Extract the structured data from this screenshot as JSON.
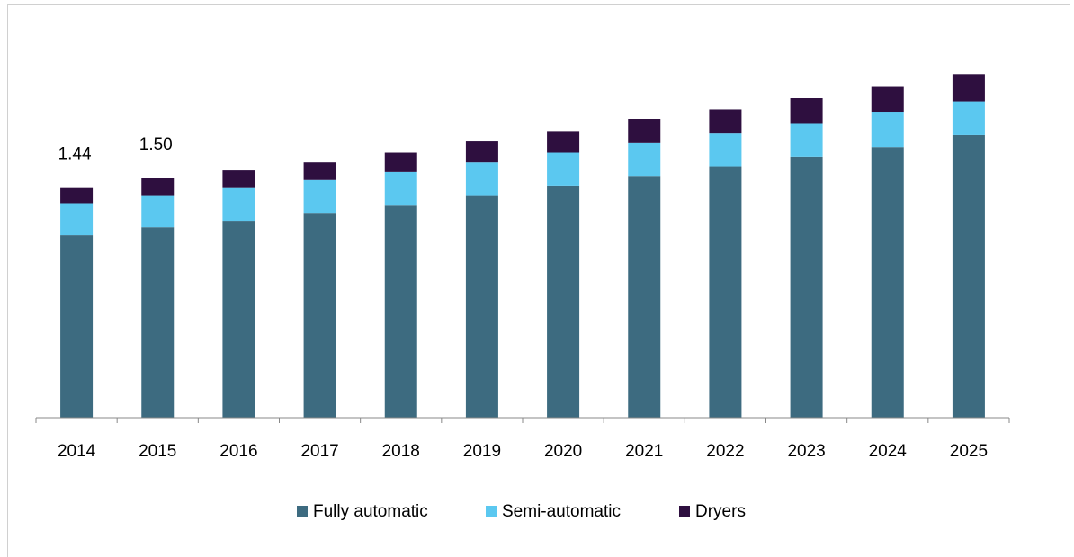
{
  "chart_data": {
    "type": "stacked_bar",
    "categories": [
      "2014",
      "2015",
      "2016",
      "2017",
      "2018",
      "2019",
      "2020",
      "2021",
      "2022",
      "2023",
      "2024",
      "2025"
    ],
    "series": [
      {
        "name": "Fully automatic",
        "color": "#3d6b80",
        "values": [
          1.14,
          1.19,
          1.23,
          1.28,
          1.33,
          1.39,
          1.45,
          1.51,
          1.57,
          1.63,
          1.69,
          1.77
        ]
      },
      {
        "name": "Semi-automatic",
        "color": "#5bc8f0",
        "values": [
          0.2,
          0.2,
          0.21,
          0.21,
          0.21,
          0.21,
          0.21,
          0.21,
          0.21,
          0.21,
          0.22,
          0.21
        ]
      },
      {
        "name": "Dryers",
        "color": "#2e0f3f",
        "values": [
          0.1,
          0.11,
          0.11,
          0.11,
          0.12,
          0.13,
          0.13,
          0.15,
          0.15,
          0.16,
          0.16,
          0.17
        ]
      }
    ],
    "annotations": [
      {
        "category": "2014",
        "value": 1.44,
        "label": "1.44"
      },
      {
        "category": "2015",
        "value": 1.5,
        "label": "1.50"
      }
    ],
    "ylim": [
      0,
      2.5
    ],
    "legend": "bottom"
  }
}
